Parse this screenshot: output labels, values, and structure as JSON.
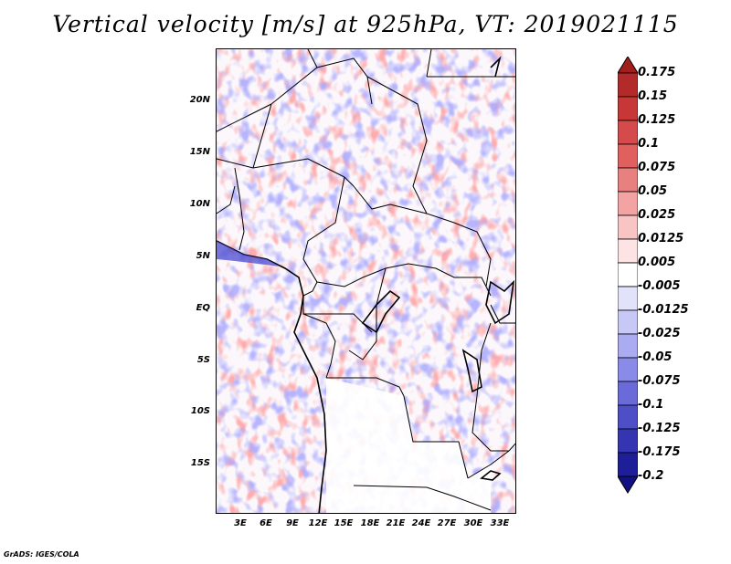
{
  "title": "Vertical velocity [m/s] at 925hPa, VT: 2019021115",
  "credit": "GrADS: IGES/COLA",
  "map": {
    "lat_ticks": [
      "20N",
      "15N",
      "10N",
      "5N",
      "EQ",
      "5S",
      "10S",
      "15S"
    ],
    "lon_ticks": [
      "3E",
      "6E",
      "9E",
      "12E",
      "15E",
      "18E",
      "21E",
      "24E",
      "27E",
      "30E",
      "33E"
    ]
  },
  "colorbar": {
    "labels": [
      "0.175",
      "0.15",
      "0.125",
      "0.1",
      "0.075",
      "0.05",
      "0.025",
      "0.0125",
      "0.005",
      "-0.005",
      "-0.0125",
      "-0.025",
      "-0.05",
      "-0.075",
      "-0.1",
      "-0.125",
      "-0.175",
      "-0.2"
    ],
    "colors": [
      "#a01e1e",
      "#b22a2a",
      "#c83737",
      "#d54a4a",
      "#e06060",
      "#e98080",
      "#f3a3a3",
      "#f8c4c4",
      "#fde3e3",
      "#ffffff",
      "#e2e2fb",
      "#c8c8f7",
      "#ababf1",
      "#8a8ae8",
      "#6a6ad8",
      "#4e4ec6",
      "#3535b2",
      "#1e1e98",
      "#111183"
    ]
  }
}
